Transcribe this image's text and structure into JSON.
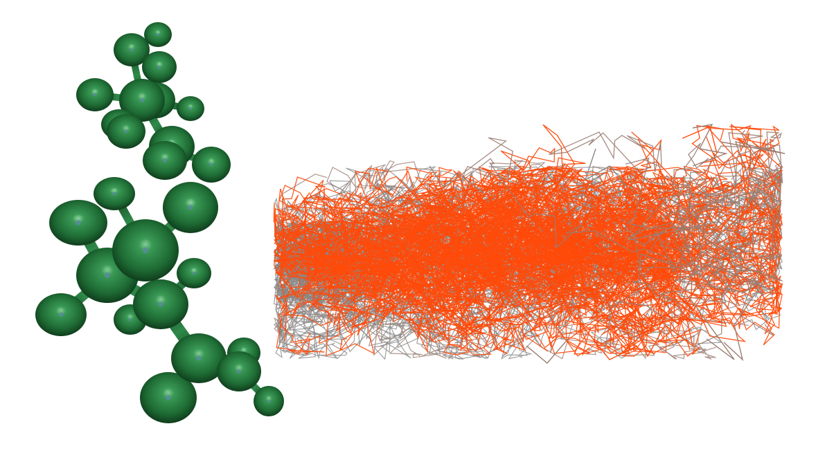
{
  "scene": {
    "background_color": "#ffffff",
    "panels": [
      {
        "kind": "molecular-structure",
        "atom_color": "#1e6b34",
        "atom_highlight": "#8ad29c",
        "bond_color": "#1a5c2c",
        "molecule_count": 2
      },
      {
        "kind": "trajectory-ensemble",
        "path_colors": [
          "#ff4a0a",
          "#888888",
          "#9a7d72"
        ]
      }
    ]
  }
}
